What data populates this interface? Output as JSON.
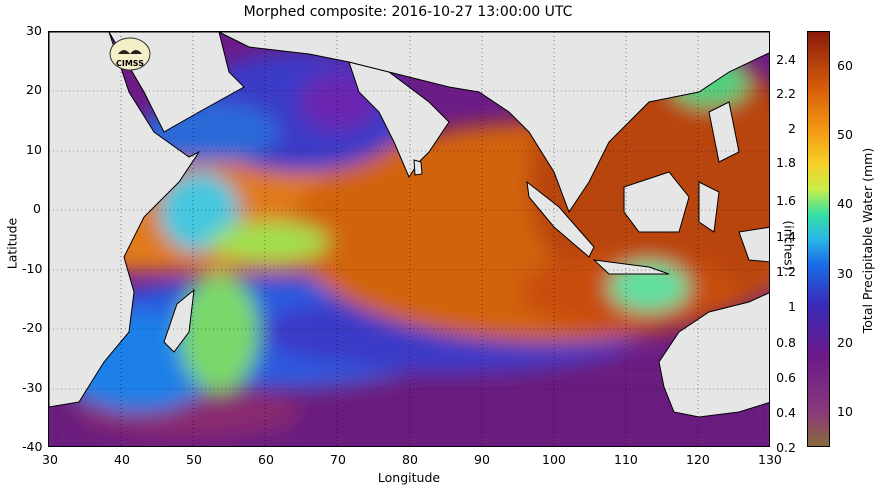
{
  "title": "Morphed composite: 2016-10-27 13:00:00 UTC",
  "map": {
    "xlabel": "Longitude",
    "ylabel": "Latitude",
    "x_ticks": [
      "30",
      "40",
      "50",
      "60",
      "70",
      "80",
      "90",
      "100",
      "110",
      "120",
      "130"
    ],
    "y_ticks": [
      "30",
      "20",
      "10",
      "0",
      "-10",
      "-20",
      "-30",
      "-40"
    ],
    "logo_text": "CIMSS"
  },
  "colorbar": {
    "title_mm": "Total Precipitable Water (mm)",
    "title_in": "(inches)",
    "inch_ticks": [
      "2.4",
      "2.2",
      "2",
      "1.8",
      "1.6",
      "1.4",
      "1.2",
      "1",
      "0.8",
      "0.6",
      "0.4",
      "0.2"
    ],
    "mm_ticks": [
      "60",
      "50",
      "40",
      "30",
      "20",
      "10"
    ],
    "colors": {
      "low": "#8a6a3a",
      "mid": "#1a6ee8",
      "high": "#8a1a0a"
    }
  }
}
